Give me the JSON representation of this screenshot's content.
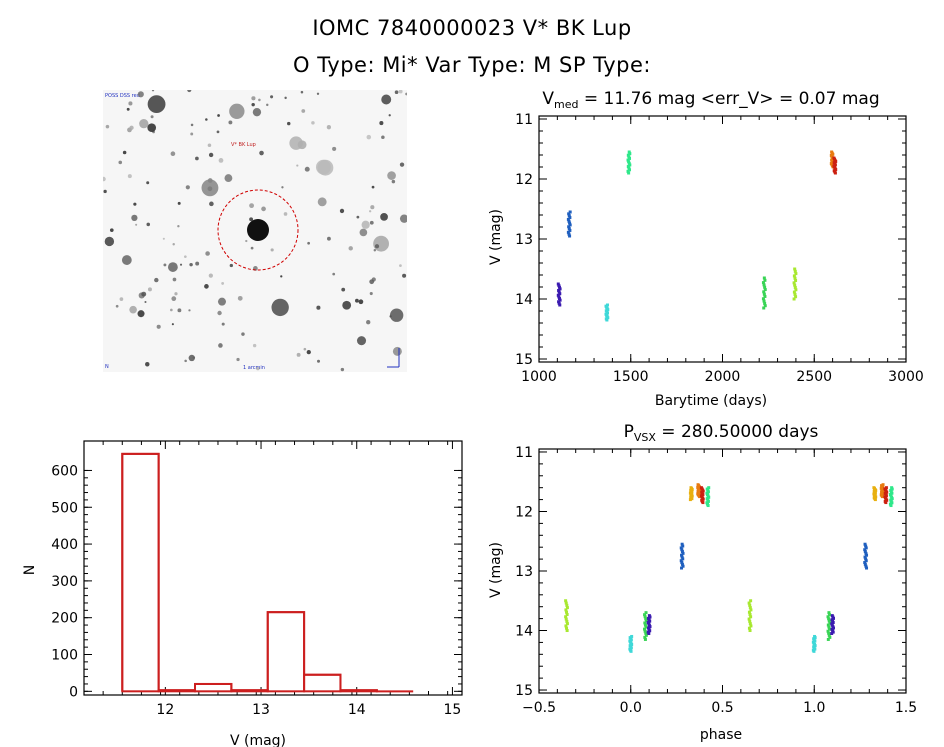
{
  "header": {
    "line1": "IOMC 7840000023    V* BK Lup",
    "line2": "O Type: Mi*   Var Type: M   SP Type:"
  },
  "colors": {
    "hist": "#cc1f1f",
    "circle": "#d00000"
  },
  "image_panel": {
    "label_top_left": "POSS DSS red",
    "label_target": "V* BK Lup",
    "label_bottom_left": "N",
    "label_bottom_center": "1 arcmin"
  },
  "chart_data": [
    {
      "id": "lightcurve",
      "type": "scatter",
      "title_main": "V",
      "title_sub": "med",
      "title_rest": " = 11.76 mag <err_V> = 0.07 mag",
      "xlabel": "Barytime (days)",
      "ylabel": "V (mag)",
      "xlim": [
        1000,
        3000
      ],
      "ylim": [
        15.05,
        10.95
      ],
      "xticks": [
        1000,
        1500,
        2000,
        2500,
        3000
      ],
      "yticks": [
        11,
        12,
        13,
        14,
        15
      ],
      "clusters": [
        {
          "x": 1110,
          "ymin": 13.75,
          "ymax": 14.1,
          "color": "#3b1bb0"
        },
        {
          "x": 1165,
          "ymin": 12.55,
          "ymax": 12.95,
          "color": "#1f5fbf"
        },
        {
          "x": 1370,
          "ymin": 14.1,
          "ymax": 14.35,
          "color": "#3fd8d8"
        },
        {
          "x": 1490,
          "ymin": 11.55,
          "ymax": 11.9,
          "color": "#2ee88a"
        },
        {
          "x": 2228,
          "ymin": 13.65,
          "ymax": 14.15,
          "color": "#39d455"
        },
        {
          "x": 2395,
          "ymin": 13.5,
          "ymax": 14.0,
          "color": "#a8e830"
        },
        {
          "x": 2598,
          "ymin": 11.55,
          "ymax": 11.8,
          "color": "#e87a10"
        },
        {
          "x": 2612,
          "ymin": 11.65,
          "ymax": 11.9,
          "color": "#cc2010"
        }
      ]
    },
    {
      "id": "histogram",
      "type": "bar",
      "xlabel": "V (mag)",
      "ylabel": "N",
      "xlim": [
        11.15,
        15.1
      ],
      "ylim": [
        -10,
        680
      ],
      "xticks": [
        12,
        13,
        14,
        15
      ],
      "yticks": [
        0,
        100,
        200,
        300,
        400,
        500,
        600
      ],
      "bin_edges": [
        11.55,
        11.93,
        12.31,
        12.69,
        13.07,
        13.45,
        13.83,
        14.21,
        14.59
      ],
      "values": [
        645,
        3,
        20,
        3,
        215,
        45,
        3,
        0
      ]
    },
    {
      "id": "phased",
      "type": "scatter",
      "title_main": "P",
      "title_sub": "VSX",
      "title_rest": " = 280.50000 days",
      "xlabel": "phase",
      "ylabel": "V (mag)",
      "xlim": [
        -0.5,
        1.5
      ],
      "ylim": [
        15.05,
        10.95
      ],
      "xticks": [
        -0.5,
        0.0,
        0.5,
        1.0,
        1.5
      ],
      "ytick_labels": [
        "11",
        "12",
        "13",
        "14",
        "15"
      ],
      "xtick_labels": [
        "−0.5",
        "0.0",
        "0.5",
        "1.0",
        "1.5"
      ],
      "yticks": [
        11,
        12,
        13,
        14,
        15
      ],
      "clusters": [
        {
          "x": -0.35,
          "ymin": 13.5,
          "ymax": 14.0,
          "color": "#a8e830"
        },
        {
          "x": 0.0,
          "ymin": 14.1,
          "ymax": 14.35,
          "color": "#3fd8d8"
        },
        {
          "x": 0.08,
          "ymin": 13.7,
          "ymax": 14.15,
          "color": "#39d455"
        },
        {
          "x": 0.1,
          "ymin": 13.75,
          "ymax": 14.05,
          "color": "#3b1bb0"
        },
        {
          "x": 0.28,
          "ymin": 12.55,
          "ymax": 12.95,
          "color": "#1f5fbf"
        },
        {
          "x": 0.33,
          "ymin": 11.6,
          "ymax": 11.8,
          "color": "#e8b010"
        },
        {
          "x": 0.37,
          "ymin": 11.55,
          "ymax": 11.75,
          "color": "#e87a10"
        },
        {
          "x": 0.39,
          "ymin": 11.6,
          "ymax": 11.85,
          "color": "#cc2010"
        },
        {
          "x": 0.42,
          "ymin": 11.6,
          "ymax": 11.9,
          "color": "#2ee88a"
        },
        {
          "x": 0.65,
          "ymin": 13.5,
          "ymax": 14.0,
          "color": "#a8e830"
        },
        {
          "x": 1.0,
          "ymin": 14.1,
          "ymax": 14.35,
          "color": "#3fd8d8"
        },
        {
          "x": 1.08,
          "ymin": 13.7,
          "ymax": 14.15,
          "color": "#39d455"
        },
        {
          "x": 1.1,
          "ymin": 13.75,
          "ymax": 14.05,
          "color": "#3b1bb0"
        },
        {
          "x": 1.28,
          "ymin": 12.55,
          "ymax": 12.95,
          "color": "#1f5fbf"
        },
        {
          "x": 1.33,
          "ymin": 11.6,
          "ymax": 11.8,
          "color": "#e8b010"
        },
        {
          "x": 1.37,
          "ymin": 11.55,
          "ymax": 11.75,
          "color": "#e87a10"
        },
        {
          "x": 1.39,
          "ymin": 11.6,
          "ymax": 11.85,
          "color": "#cc2010"
        },
        {
          "x": 1.42,
          "ymin": 11.6,
          "ymax": 11.9,
          "color": "#2ee88a"
        }
      ]
    }
  ]
}
